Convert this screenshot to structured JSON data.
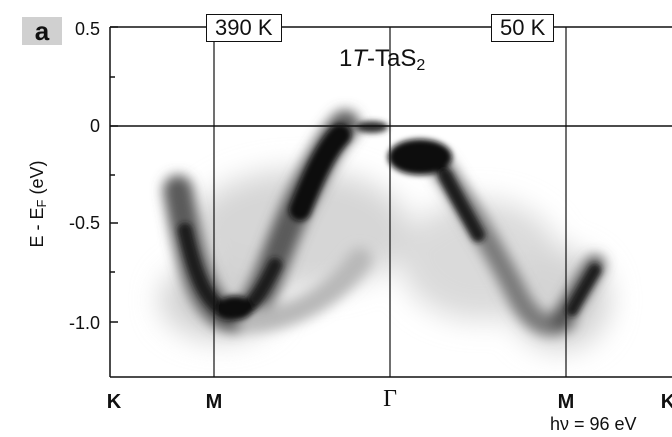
{
  "panel_label": "a",
  "material": {
    "prefix": "1",
    "italic": "T",
    "dash_name": "-TaS",
    "subscript": "2"
  },
  "photon_energy": "hν = 96 eV",
  "temperatures": {
    "left": "390 K",
    "right": "50 K"
  },
  "chart_data": {
    "type": "heatmap",
    "title": "1T-TaS2",
    "ylabel": "E - EF (eV)",
    "ylim": [
      -1.27,
      0.5
    ],
    "yticks": [
      "0.5",
      "0",
      "-0.5",
      "-1.0"
    ],
    "x_categories": [
      "K",
      "M",
      "Γ",
      "M",
      "K"
    ],
    "panels": [
      {
        "name": "390 K",
        "k_range": [
          "K",
          "Γ"
        ]
      },
      {
        "name": "50 K",
        "k_range": [
          "Γ",
          "K"
        ]
      }
    ],
    "grid": true,
    "reference_line_energy": 0
  },
  "colors": {
    "intensity": "#111111",
    "axes": "#111111",
    "badge": "#d0d0d0"
  }
}
